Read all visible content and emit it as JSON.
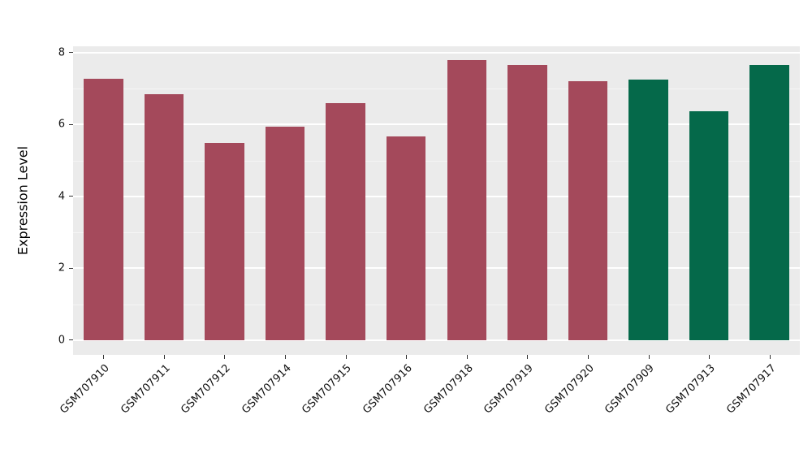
{
  "chart_data": {
    "type": "bar",
    "title": "",
    "xlabel": "",
    "ylabel": "Expression Level",
    "categories": [
      "GSM707910",
      "GSM707911",
      "GSM707912",
      "GSM707914",
      "GSM707915",
      "GSM707916",
      "GSM707918",
      "GSM707919",
      "GSM707920",
      "GSM707909",
      "GSM707913",
      "GSM707917"
    ],
    "values": [
      7.28,
      6.85,
      5.5,
      5.95,
      6.6,
      5.68,
      7.8,
      7.65,
      7.2,
      7.25,
      6.38,
      7.65
    ],
    "groups": [
      "red",
      "red",
      "red",
      "red",
      "red",
      "red",
      "red",
      "red",
      "red",
      "green",
      "green",
      "green"
    ],
    "palette": {
      "red": "#A4495B",
      "green": "#05694A"
    },
    "yticks": [
      0,
      2,
      4,
      6,
      8
    ],
    "ylim": [
      -0.41,
      8.18
    ],
    "grid": "on",
    "legend": "none",
    "panel_bg": "#EBEBEB",
    "grid_color": "#FFFFFF",
    "bar_width_fraction": 0.65
  }
}
